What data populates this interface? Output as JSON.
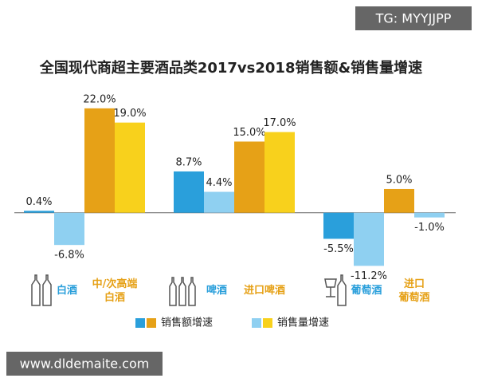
{
  "chart_data": {
    "type": "bar",
    "title": "全国现代商超主要酒品类2017vs2018销售额&销售量增速",
    "categories": [
      "白酒",
      "中/次高端\n白酒",
      "啤酒",
      "进口啤酒",
      "葡萄酒",
      "进口\n葡萄酒"
    ],
    "series": [
      {
        "name": "销售额增速",
        "colors": [
          "#2a9fdb",
          "#e6a117",
          "#2a9fdb",
          "#e6a117",
          "#2a9fdb",
          "#e6a117"
        ],
        "values": [
          0.4,
          22.0,
          8.7,
          15.0,
          -5.5,
          5.0
        ],
        "value_labels": [
          "0.4%",
          "22.0%",
          "8.7%",
          "15.0%",
          "-5.5%",
          "5.0%"
        ]
      },
      {
        "name": "销售量增速",
        "colors": [
          "#8fd0f1",
          "#f8d11c",
          "#8fd0f1",
          "#f8d11c",
          "#8fd0f1",
          "#8fd0f1"
        ],
        "values": [
          -6.8,
          19.0,
          4.4,
          17.0,
          -11.2,
          -1.0
        ],
        "value_labels": [
          "-6.8%",
          "19.0%",
          "4.4%",
          "17.0%",
          "-11.2%",
          "-1.0%"
        ]
      }
    ],
    "ylim": [
      -14,
      25
    ],
    "grid": false
  },
  "watermarks": [
    "TG: MYYJJPP",
    "www.dldemaite.com"
  ]
}
